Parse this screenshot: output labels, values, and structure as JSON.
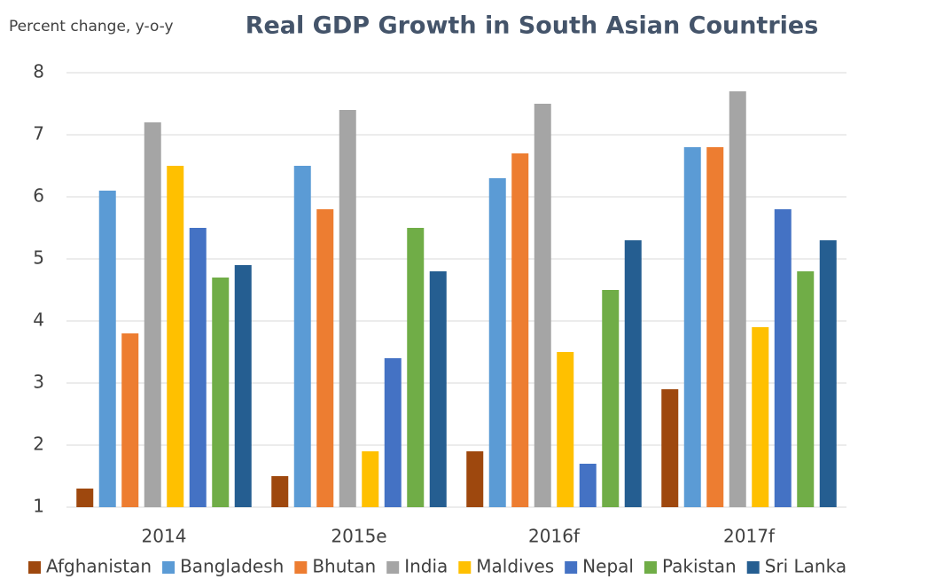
{
  "chart_data": {
    "type": "bar",
    "title": "Real GDP Growth in South Asian Countries",
    "y_axis_label": "Percent change, y-o-y",
    "categories": [
      "2014",
      "2015e",
      "2016f",
      "2017f"
    ],
    "series": [
      {
        "name": "Afghanistan",
        "color": "#9e480e",
        "values": [
          1.3,
          1.5,
          1.9,
          2.9
        ]
      },
      {
        "name": "Bangladesh",
        "color": "#5b9bd5",
        "values": [
          6.1,
          6.5,
          6.3,
          6.8
        ]
      },
      {
        "name": "Bhutan",
        "color": "#ed7d31",
        "values": [
          3.8,
          5.8,
          6.7,
          6.8
        ]
      },
      {
        "name": "India",
        "color": "#a5a5a5",
        "values": [
          7.2,
          7.4,
          7.5,
          7.7
        ]
      },
      {
        "name": "Maldives",
        "color": "#ffc000",
        "values": [
          6.5,
          1.9,
          3.5,
          3.9
        ]
      },
      {
        "name": "Nepal",
        "color": "#4472c4",
        "values": [
          5.5,
          3.4,
          1.7,
          5.8
        ]
      },
      {
        "name": "Pakistan",
        "color": "#70ad47",
        "values": [
          4.7,
          5.5,
          4.5,
          4.8
        ]
      },
      {
        "name": "Sri Lanka",
        "color": "#255e91",
        "values": [
          4.9,
          4.8,
          5.3,
          5.3
        ]
      }
    ],
    "ylim": [
      1,
      8
    ],
    "yticks": [
      1,
      2,
      3,
      4,
      5,
      6,
      7,
      8
    ],
    "grid": true,
    "legend": "bottom"
  }
}
